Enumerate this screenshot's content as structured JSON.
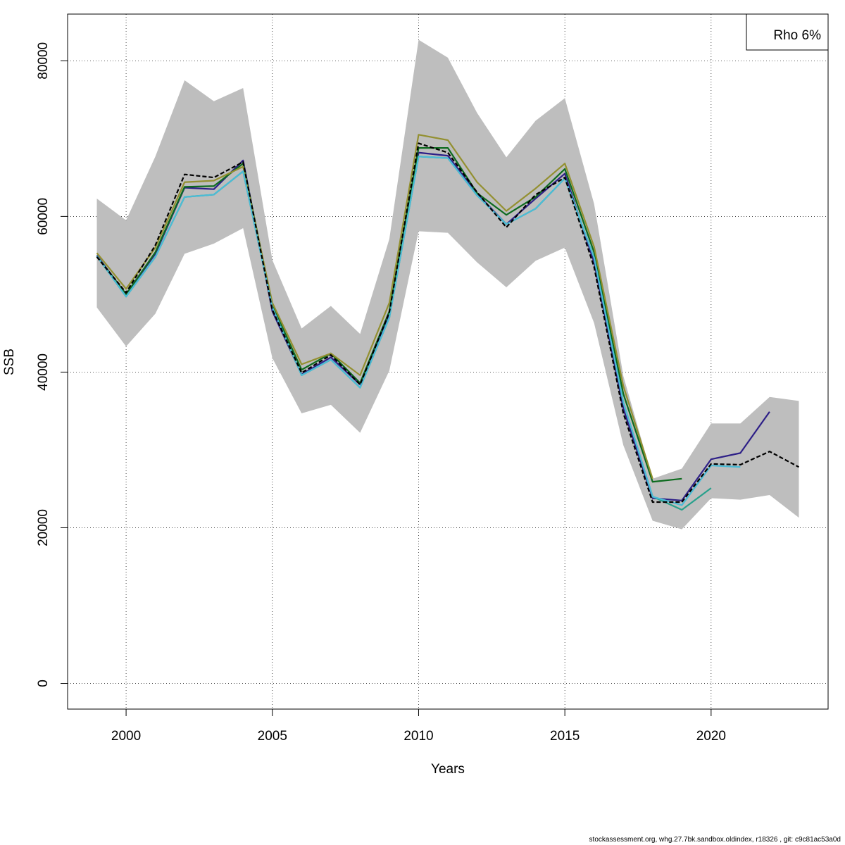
{
  "chart_data": {
    "type": "line",
    "xlabel": "Years",
    "ylabel": "SSB",
    "xlim": [
      1998,
      2024
    ],
    "ylim": [
      -3300,
      86000
    ],
    "x_ticks": [
      2000,
      2005,
      2010,
      2015,
      2020
    ],
    "y_ticks": [
      0,
      20000,
      40000,
      60000,
      80000
    ],
    "grid": true,
    "legend": {
      "position": "top-right",
      "text": "Rho 6%"
    },
    "confidence_band": {
      "color": "#bebebe",
      "x": [
        1999,
        2000,
        2001,
        2002,
        2003,
        2004,
        2005,
        2006,
        2007,
        2008,
        2009,
        2010,
        2011,
        2012,
        2013,
        2014,
        2015,
        2016,
        2017,
        2018,
        2019,
        2020,
        2021,
        2022,
        2023
      ],
      "lower": [
        48300,
        43300,
        47500,
        55200,
        56500,
        58500,
        41800,
        34700,
        35800,
        32200,
        40200,
        58100,
        57900,
        54100,
        50900,
        54300,
        56000,
        46300,
        30600,
        20900,
        19800,
        23800,
        23600,
        24200,
        21300
      ],
      "upper": [
        62300,
        59500,
        67700,
        77500,
        74800,
        76500,
        54400,
        45600,
        48500,
        44900,
        57100,
        82700,
        80400,
        73300,
        67600,
        72300,
        75200,
        61600,
        39500,
        26300,
        27600,
        33400,
        33400,
        36800,
        36300
      ]
    },
    "series": [
      {
        "color": "#000000",
        "dash": true,
        "x": [
          1999,
          2000,
          2001,
          2002,
          2003,
          2004,
          2005,
          2006,
          2007,
          2008,
          2009,
          2010,
          2011,
          2012,
          2013,
          2014,
          2015,
          2016,
          2017,
          2018,
          2019,
          2020,
          2021,
          2022,
          2023
        ],
        "values": [
          54800,
          50200,
          56300,
          65400,
          65000,
          67000,
          48000,
          39900,
          42200,
          38400,
          47700,
          69400,
          68200,
          63100,
          58600,
          62800,
          65000,
          53500,
          34700,
          23300,
          23300,
          28200,
          28100,
          29800,
          27800
        ]
      },
      {
        "color": "#2d1f87",
        "dash": false,
        "x": [
          1999,
          2000,
          2001,
          2002,
          2003,
          2004,
          2005,
          2006,
          2007,
          2008,
          2009,
          2010,
          2011,
          2012,
          2013,
          2014,
          2015,
          2016,
          2017,
          2018,
          2019,
          2020,
          2021,
          2022
        ],
        "values": [
          55000,
          50000,
          55200,
          63700,
          63500,
          67200,
          47800,
          39700,
          41900,
          38400,
          47300,
          68200,
          67800,
          62900,
          59000,
          62300,
          65500,
          54100,
          35300,
          23800,
          23500,
          28800,
          29600,
          34900
        ]
      },
      {
        "color": "#0d6b1f",
        "dash": false,
        "x": [
          1999,
          2000,
          2001,
          2002,
          2003,
          2004,
          2005,
          2006,
          2007,
          2008,
          2009,
          2010,
          2011,
          2012,
          2013,
          2014,
          2015,
          2016,
          2017,
          2018,
          2019
        ],
        "values": [
          54900,
          50000,
          55400,
          63800,
          63900,
          66800,
          48600,
          40300,
          42400,
          38600,
          47800,
          68800,
          68800,
          63000,
          60200,
          62500,
          66100,
          55400,
          37200,
          25900,
          26300
        ]
      },
      {
        "color": "#939030",
        "dash": false,
        "x": [
          1999,
          2000,
          2001,
          2002,
          2003,
          2004,
          2005,
          2006,
          2007,
          2008,
          2009,
          2010,
          2011,
          2012,
          2013,
          2014,
          2015,
          2016,
          2017,
          2018
        ],
        "values": [
          55300,
          50700,
          56000,
          64400,
          64600,
          66400,
          48900,
          41000,
          42400,
          39600,
          48900,
          70500,
          69800,
          64400,
          60700,
          63600,
          66800,
          56100,
          38200,
          26300
        ]
      },
      {
        "color": "#28a08c",
        "dash": false,
        "x": [
          1999,
          2000,
          2001,
          2002,
          2003,
          2004,
          2005,
          2006,
          2007,
          2008,
          2009,
          2010,
          2011,
          2012,
          2013,
          2014,
          2015,
          2016,
          2017,
          2018,
          2019,
          2020
        ],
        "values": [
          54900,
          49700,
          54800,
          62500,
          62800,
          65800,
          48300,
          39600,
          41600,
          38000,
          47000,
          67700,
          67500,
          62700,
          59000,
          61000,
          64900,
          54700,
          36100,
          24000,
          22300,
          25100
        ]
      },
      {
        "color": "#4bbcd6",
        "dash": false,
        "x": [
          1999,
          2000,
          2001,
          2002,
          2003,
          2004,
          2005,
          2006,
          2007,
          2008,
          2009,
          2010,
          2011,
          2012,
          2013,
          2014,
          2015,
          2016,
          2017,
          2018,
          2019,
          2020,
          2021
        ],
        "values": [
          54900,
          49700,
          54800,
          62500,
          62800,
          65800,
          48300,
          39600,
          41600,
          38000,
          47000,
          67700,
          67500,
          62700,
          59000,
          61000,
          64900,
          54700,
          36100,
          24000,
          22900,
          28000,
          27800
        ]
      }
    ]
  },
  "footer": {
    "text": "stockassessment.org, whg.27.7bk.sandbox.oldindex, r18326 , git: c9c81ac53a0d"
  }
}
